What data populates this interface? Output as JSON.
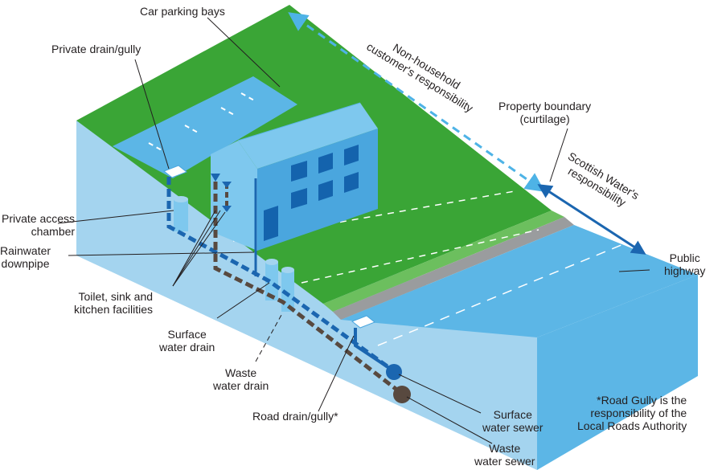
{
  "labels": {
    "car_parking": "Car parking bays",
    "private_drain": "Private drain/gully",
    "non_household": "Non-household\ncustomer's responsibility",
    "property_boundary": "Property boundary\n(curtilage)",
    "scottish_water": "Scottish Water's\nresponsibility",
    "private_access": "Private access\nchamber",
    "rainwater": "Rainwater\ndownpipe",
    "toilet": "Toilet, sink and\nkitchen facilities",
    "surface_drain": "Surface\nwater drain",
    "waste_drain": "Waste\nwater drain",
    "road_drain": "Road drain/gully*",
    "surface_sewer": "Surface\nwater sewer",
    "waste_sewer": "Waste\nwater sewer",
    "public_highway": "Public\nhighway",
    "note": "*Road Gully is the\nresponsibility of the\nLocal Roads Authority"
  },
  "colors": {
    "grass": "#3aa536",
    "grass_verge": "#6cbf5e",
    "kerb": "#9a9c9e",
    "soil_front": "#a4d4ef",
    "soil_side": "#5cb6e6",
    "road": "#5cb6e6",
    "parking": "#5cb6e6",
    "building_light": "#7ec8ee",
    "building_dark": "#4aa6de",
    "window": "#1463ad",
    "surface_pipe": "#1b66b0",
    "waste_pipe": "#58493f",
    "dashed_arrow": "#4eb3e6",
    "solid_arrow": "#1b66b0"
  }
}
